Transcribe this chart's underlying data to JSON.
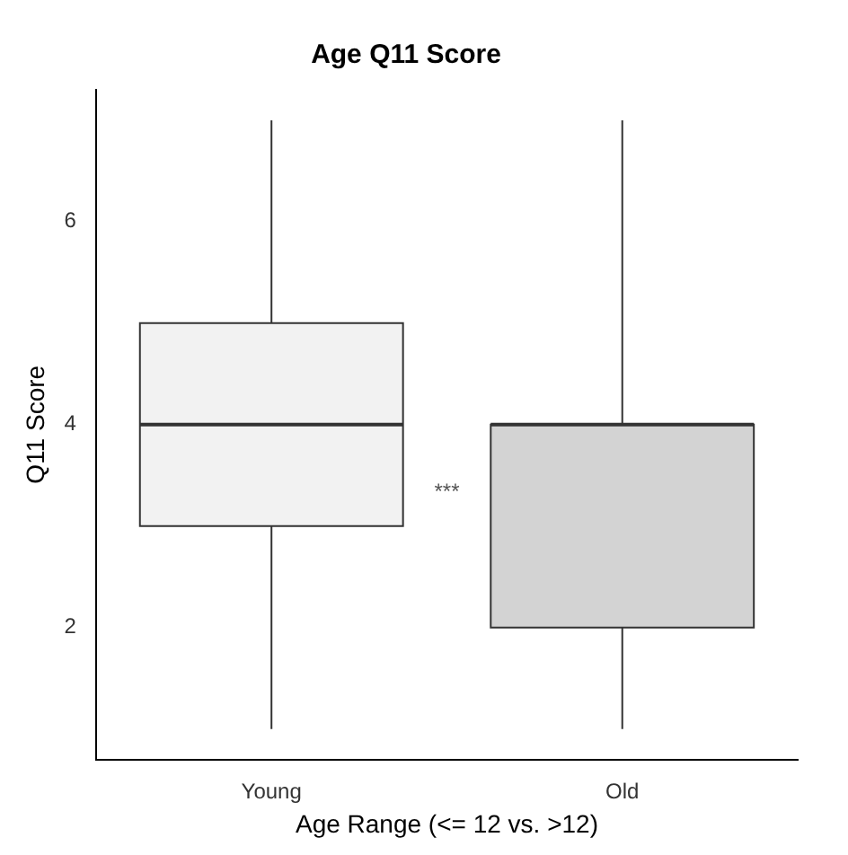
{
  "chart_data": {
    "type": "box",
    "title": "Age Q11 Score",
    "xlabel": "Age Range (<= 12 vs. >12)",
    "ylabel": "Q11 Score",
    "categories": [
      "Young",
      "Old"
    ],
    "boxes": [
      {
        "low": 1,
        "q1": 3,
        "median": 4,
        "q3": 5,
        "high": 7
      },
      {
        "low": 1,
        "q1": 2,
        "median": 4,
        "q3": 4,
        "high": 7
      }
    ],
    "colors": [
      "#f2f2f2",
      "#d3d3d3"
    ],
    "ylim": [
      0.7,
      7.3
    ],
    "yticks": [
      2,
      4,
      6
    ],
    "annotations": [
      "***"
    ]
  }
}
